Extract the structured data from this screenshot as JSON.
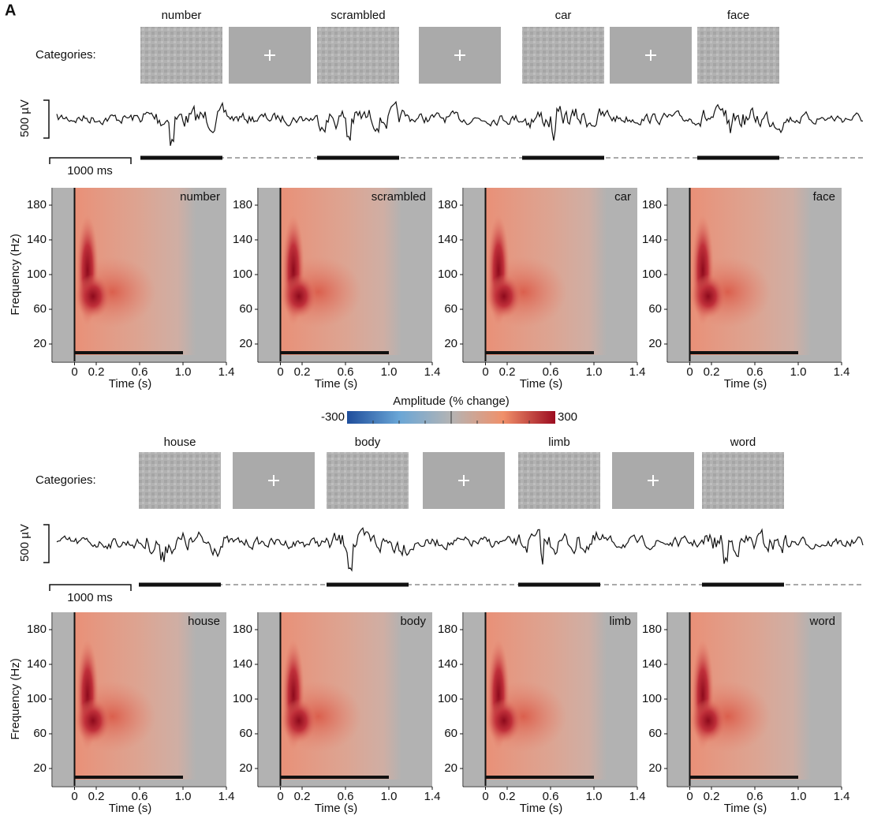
{
  "panel_label": "A",
  "colorbar": {
    "title": "Amplitude (% change)",
    "min": -300,
    "max": 300
  },
  "rows": [
    {
      "categories_label": "Categories:",
      "stimuli": [
        "number",
        "scrambled",
        "car",
        "face"
      ],
      "voltage_scale": "500 µV",
      "time_scale": "1000 ms"
    },
    {
      "categories_label": "Categories:",
      "stimuli": [
        "house",
        "body",
        "limb",
        "word"
      ],
      "voltage_scale": "500 µV",
      "time_scale": "1000 ms"
    }
  ],
  "spectrogram_axes": {
    "ylabel": "Frequency (Hz)",
    "xlabel": "Time (s)",
    "xlim": [
      -0.2,
      1.4
    ],
    "ylim": [
      0,
      200
    ],
    "xticks": [
      0,
      0.2,
      0.6,
      {
        "value": 1,
        "label": "1.0"
      },
      1.4
    ],
    "yticks": [
      20,
      60,
      100,
      140,
      180
    ]
  }
}
